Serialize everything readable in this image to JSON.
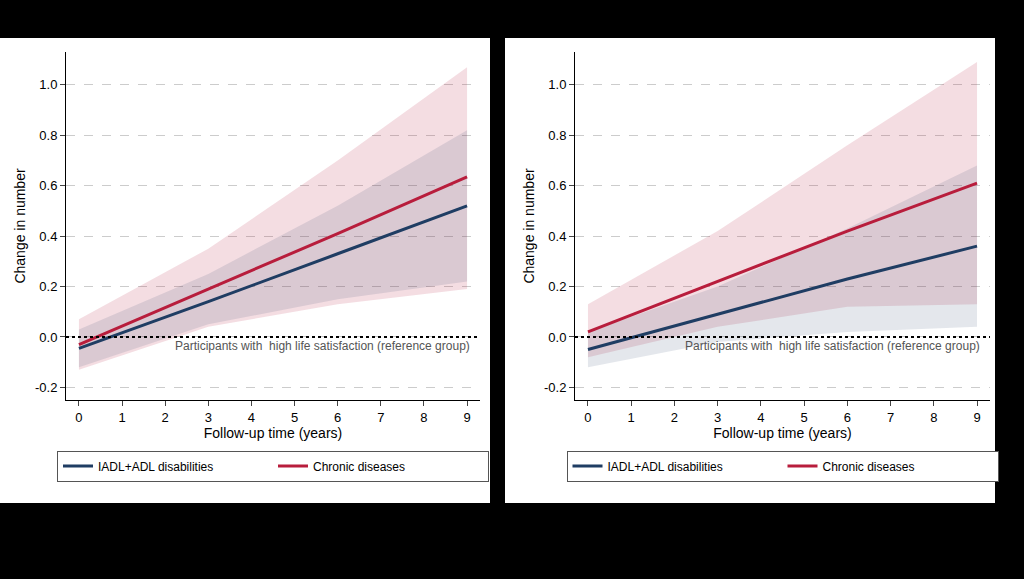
{
  "chart_data": [
    {
      "type": "line",
      "xlabel": "Follow-up time (years)",
      "ylabel": "Change in number",
      "x": [
        0,
        3,
        6,
        9
      ],
      "xlim": [
        -0.3,
        9.3
      ],
      "xticks": [
        0,
        1,
        2,
        3,
        4,
        5,
        6,
        7,
        8,
        9
      ],
      "ylim": [
        -0.25,
        1.13
      ],
      "yticks": [
        {
          "value": -0.2,
          "label": "-0.2"
        },
        {
          "value": 0,
          "label": "0.0"
        },
        {
          "value": 0.2,
          "label": "0.2"
        },
        {
          "value": 0.4,
          "label": "0.4"
        },
        {
          "value": 0.6,
          "label": "0.6"
        },
        {
          "value": 0.8,
          "label": "0.8"
        },
        {
          "value": 1.0,
          "label": "1.0"
        }
      ],
      "grid": true,
      "legend": "bottom",
      "reference_line": {
        "y": 0,
        "label": "Participants with  high life satisfaction (reference group)"
      },
      "series": [
        {
          "name": "Chronic diseases",
          "color": "#b81d3c",
          "values": [
            -0.03,
            0.19,
            0.41,
            0.635
          ],
          "lower": [
            -0.13,
            0.04,
            0.13,
            0.19
          ],
          "upper": [
            0.07,
            0.35,
            0.7,
            1.07
          ]
        },
        {
          "name": "IADL+ADL disabilities",
          "color": "#1f3d63",
          "values": [
            -0.045,
            0.14,
            0.33,
            0.52
          ],
          "lower": [
            -0.12,
            0.05,
            0.15,
            0.22
          ],
          "upper": [
            0.03,
            0.25,
            0.52,
            0.82
          ]
        }
      ]
    },
    {
      "type": "line",
      "xlabel": "Follow-up time (years)",
      "ylabel": "Change in number",
      "x": [
        0,
        3,
        6,
        9
      ],
      "xlim": [
        -0.3,
        9.3
      ],
      "xticks": [
        0,
        1,
        2,
        3,
        4,
        5,
        6,
        7,
        8,
        9
      ],
      "ylim": [
        -0.25,
        1.13
      ],
      "yticks": [
        {
          "value": -0.2,
          "label": "-0.2"
        },
        {
          "value": 0,
          "label": "0.0"
        },
        {
          "value": 0.2,
          "label": "0.2"
        },
        {
          "value": 0.4,
          "label": "0.4"
        },
        {
          "value": 0.6,
          "label": "0.6"
        },
        {
          "value": 0.8,
          "label": "0.8"
        },
        {
          "value": 1.0,
          "label": "1.0"
        }
      ],
      "grid": true,
      "legend": "bottom",
      "reference_line": {
        "y": 0,
        "label": "Participants with  high life satisfaction (reference group)"
      },
      "series": [
        {
          "name": "Chronic diseases",
          "color": "#b81d3c",
          "values": [
            0.02,
            0.22,
            0.42,
            0.61
          ],
          "lower": [
            -0.08,
            0.04,
            0.12,
            0.13
          ],
          "upper": [
            0.13,
            0.42,
            0.76,
            1.09
          ]
        },
        {
          "name": "IADL+ADL disabilities",
          "color": "#1f3d63",
          "values": [
            -0.05,
            0.09,
            0.23,
            0.36
          ],
          "lower": [
            -0.12,
            -0.02,
            0.02,
            0.04
          ],
          "upper": [
            0.02,
            0.2,
            0.43,
            0.68
          ]
        }
      ]
    }
  ]
}
